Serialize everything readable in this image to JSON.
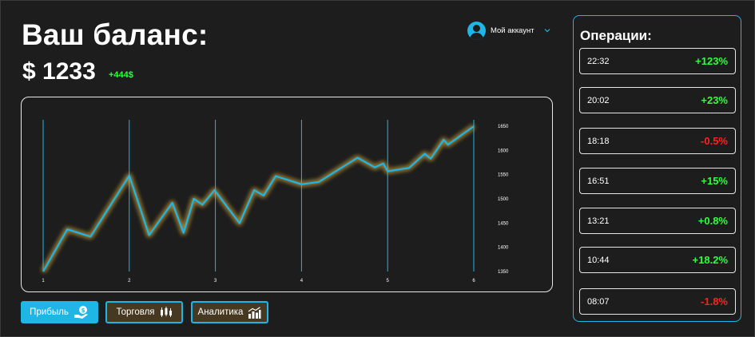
{
  "header": {
    "title": "Ваш баланс:",
    "balance": "$ 1233",
    "delta": "+444$"
  },
  "account": {
    "label": "Мой аккаунт",
    "icon": "user-icon"
  },
  "chart_data": {
    "type": "line",
    "x_ticks": [
      "1",
      "2",
      "3",
      "4",
      "5",
      "6"
    ],
    "y_ticks": [
      "1650",
      "1600",
      "1550",
      "1500",
      "1450",
      "1400",
      "1350"
    ],
    "xlim": [
      1,
      6
    ],
    "ylim": [
      1350,
      1660
    ],
    "grid": "vertical",
    "line_color": "#1fb6e6",
    "glow_color": "#c8a040",
    "points": [
      [
        1.0,
        1350
      ],
      [
        1.28,
        1437
      ],
      [
        1.55,
        1422
      ],
      [
        2.0,
        1548
      ],
      [
        2.23,
        1425
      ],
      [
        2.5,
        1492
      ],
      [
        2.63,
        1430
      ],
      [
        2.75,
        1500
      ],
      [
        2.85,
        1488
      ],
      [
        2.99,
        1518
      ],
      [
        3.28,
        1450
      ],
      [
        3.45,
        1518
      ],
      [
        3.56,
        1507
      ],
      [
        3.7,
        1547
      ],
      [
        4.0,
        1530
      ],
      [
        4.2,
        1535
      ],
      [
        4.65,
        1585
      ],
      [
        4.85,
        1565
      ],
      [
        4.95,
        1573
      ],
      [
        5.0,
        1557
      ],
      [
        5.25,
        1564
      ],
      [
        5.43,
        1593
      ],
      [
        5.5,
        1583
      ],
      [
        5.65,
        1622
      ],
      [
        5.7,
        1612
      ],
      [
        6.0,
        1650
      ]
    ]
  },
  "buttons": {
    "profit": {
      "label": "Прибыль",
      "icon": "money-hand-icon"
    },
    "trade": {
      "label": "Торговля",
      "icon": "candlestick-icon"
    },
    "analytics": {
      "label": "Аналитика",
      "icon": "bar-chart-icon"
    }
  },
  "operations": {
    "title": "Операции:",
    "items": [
      {
        "time": "22:32",
        "value": "+123%",
        "type": "pos"
      },
      {
        "time": "20:02",
        "value": "+23%",
        "type": "pos"
      },
      {
        "time": "18:18",
        "value": "-0.5%",
        "type": "neg"
      },
      {
        "time": "16:51",
        "value": "+15%",
        "type": "pos"
      },
      {
        "time": "13:21",
        "value": "+0.8%",
        "type": "pos"
      },
      {
        "time": "10:44",
        "value": "+18.2%",
        "type": "pos"
      },
      {
        "time": "08:07",
        "value": "-1.8%",
        "type": "neg"
      }
    ],
    "colors": {
      "pos": "#2cff3c",
      "neg": "#ff2020"
    }
  }
}
